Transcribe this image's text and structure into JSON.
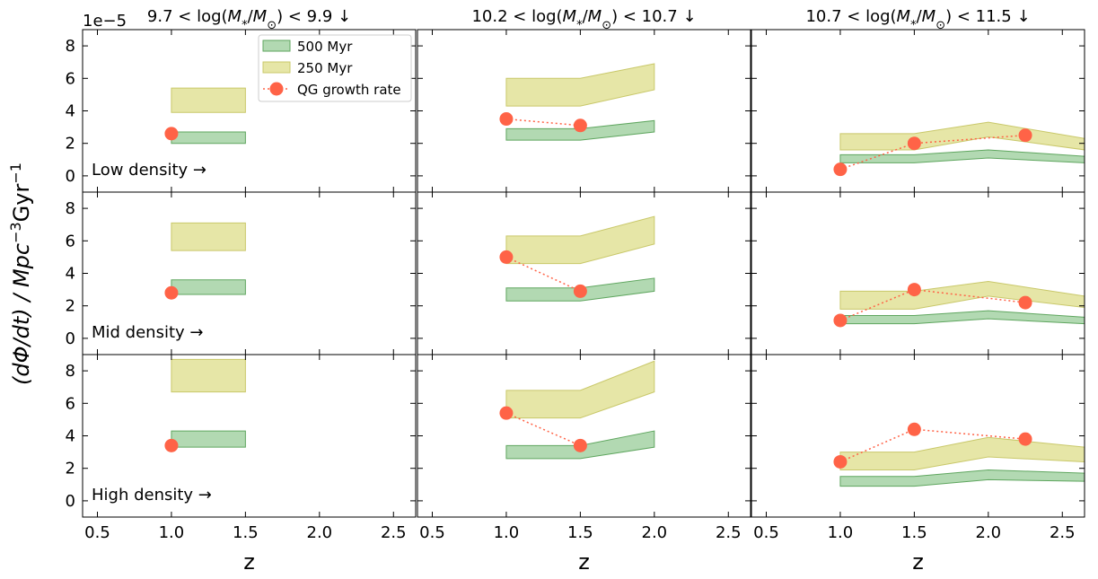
{
  "chart_data": {
    "type": "line",
    "scale_note": "1e−5",
    "ylabel_text": "(dΦ/dt) / Mpc",
    "ylabel_sup1": "−3",
    "ylabel_mid": "Gyr",
    "ylabel_sup2": "−1",
    "xlabel": "z",
    "xlim": [
      0.4,
      2.65
    ],
    "ylim": [
      -1,
      9
    ],
    "x_ticks": [
      0.5,
      1.0,
      1.5,
      2.0,
      2.5
    ],
    "x_tick_labels": [
      "0.5",
      "1.0",
      "1.5",
      "2.0",
      "2.5"
    ],
    "y_ticks": [
      0,
      2,
      4,
      6,
      8
    ],
    "y_tick_labels": [
      "0",
      "2",
      "4",
      "6",
      "8"
    ],
    "columns": [
      {
        "prefix": "9.7 < log(",
        "suffix": ") < 9.9",
        "arrow": "↓"
      },
      {
        "prefix": "10.2 < log(",
        "suffix": ") < 10.7",
        "arrow": "↓"
      },
      {
        "prefix": "10.7 < log(",
        "suffix": ") < 11.5",
        "arrow": "↓"
      }
    ],
    "mass_symbol": {
      "M": "M",
      "star_sub": "*",
      "sun_sub": "⊙"
    },
    "rows": [
      "Low density →",
      "Mid density →",
      "High density →"
    ],
    "legend": {
      "placement": "top-right of first panel",
      "entries": [
        {
          "label": "500 Myr",
          "color": "#7fbf7f"
        },
        {
          "label": "250 Myr",
          "color": "#dedd8a"
        },
        {
          "label": "QG growth rate",
          "color": "#ff6347"
        }
      ]
    },
    "colors": {
      "band_500": "#7fbf7f",
      "band_500_edge": "#5fa65f",
      "band_250": "#dedd8a",
      "band_250_edge": "#c9c86a",
      "growth": "#ff6347"
    },
    "panels": [
      [
        {
          "band_500": {
            "x": [
              1.0,
              1.5
            ],
            "lo": [
              2.0,
              2.0
            ],
            "hi": [
              2.7,
              2.7
            ]
          },
          "band_250": {
            "x": [
              1.0,
              1.5
            ],
            "lo": [
              3.9,
              3.9
            ],
            "hi": [
              5.4,
              5.4
            ]
          },
          "growth": {
            "x": [
              1.0
            ],
            "y": [
              2.6
            ],
            "err": [
              0.1
            ]
          }
        },
        {
          "band_500": {
            "x": [
              1.0,
              1.5,
              2.0
            ],
            "lo": [
              2.2,
              2.2,
              2.7
            ],
            "hi": [
              2.9,
              2.9,
              3.4
            ]
          },
          "band_250": {
            "x": [
              1.0,
              1.5,
              2.0
            ],
            "lo": [
              4.3,
              4.3,
              5.3
            ],
            "hi": [
              6.0,
              6.0,
              6.9
            ]
          },
          "growth": {
            "x": [
              1.0,
              1.5
            ],
            "y": [
              3.5,
              3.1
            ],
            "err": [
              0.2,
              0.15
            ]
          }
        },
        {
          "band_500": {
            "x": [
              1.0,
              1.5,
              2.0,
              2.65
            ],
            "lo": [
              0.8,
              0.8,
              1.1,
              0.8
            ],
            "hi": [
              1.3,
              1.3,
              1.6,
              1.2
            ]
          },
          "band_250": {
            "x": [
              1.0,
              1.5,
              2.0,
              2.65
            ],
            "lo": [
              1.6,
              1.6,
              2.4,
              1.6
            ],
            "hi": [
              2.6,
              2.6,
              3.3,
              2.3
            ]
          },
          "growth": {
            "x": [
              1.0,
              1.5,
              2.25
            ],
            "y": [
              0.4,
              2.0,
              2.5
            ],
            "err": [
              0.1,
              0.15,
              0.15
            ]
          }
        }
      ],
      [
        {
          "band_500": {
            "x": [
              1.0,
              1.5
            ],
            "lo": [
              2.7,
              2.7
            ],
            "hi": [
              3.6,
              3.6
            ]
          },
          "band_250": {
            "x": [
              1.0,
              1.5
            ],
            "lo": [
              5.4,
              5.4
            ],
            "hi": [
              7.1,
              7.1
            ]
          },
          "growth": {
            "x": [
              1.0
            ],
            "y": [
              2.8
            ],
            "err": [
              0.1
            ]
          }
        },
        {
          "band_500": {
            "x": [
              1.0,
              1.5,
              2.0
            ],
            "lo": [
              2.3,
              2.3,
              2.9
            ],
            "hi": [
              3.1,
              3.1,
              3.7
            ]
          },
          "band_250": {
            "x": [
              1.0,
              1.5,
              2.0
            ],
            "lo": [
              4.6,
              4.6,
              5.8
            ],
            "hi": [
              6.3,
              6.3,
              7.5
            ]
          },
          "growth": {
            "x": [
              1.0,
              1.5
            ],
            "y": [
              5.0,
              2.9
            ],
            "err": [
              0.25,
              0.15
            ]
          }
        },
        {
          "band_500": {
            "x": [
              1.0,
              1.5,
              2.0,
              2.65
            ],
            "lo": [
              0.9,
              0.9,
              1.2,
              0.9
            ],
            "hi": [
              1.4,
              1.4,
              1.7,
              1.3
            ]
          },
          "band_250": {
            "x": [
              1.0,
              1.5,
              2.0,
              2.65
            ],
            "lo": [
              1.8,
              1.8,
              2.6,
              1.9
            ],
            "hi": [
              2.9,
              2.9,
              3.5,
              2.6
            ]
          },
          "growth": {
            "x": [
              1.0,
              1.5,
              2.25
            ],
            "y": [
              1.1,
              3.0,
              2.2
            ],
            "err": [
              0.1,
              0.2,
              0.15
            ]
          }
        }
      ],
      [
        {
          "band_500": {
            "x": [
              1.0,
              1.5
            ],
            "lo": [
              3.3,
              3.3
            ],
            "hi": [
              4.3,
              4.3
            ]
          },
          "band_250": {
            "x": [
              1.0,
              1.5
            ],
            "lo": [
              6.7,
              6.7
            ],
            "hi": [
              8.7,
              8.7
            ]
          },
          "growth": {
            "x": [
              1.0
            ],
            "y": [
              3.4
            ],
            "err": [
              0.1
            ]
          }
        },
        {
          "band_500": {
            "x": [
              1.0,
              1.5,
              2.0
            ],
            "lo": [
              2.6,
              2.6,
              3.3
            ],
            "hi": [
              3.4,
              3.4,
              4.3
            ]
          },
          "band_250": {
            "x": [
              1.0,
              1.5,
              2.0
            ],
            "lo": [
              5.1,
              5.1,
              6.7
            ],
            "hi": [
              6.8,
              6.8,
              8.6
            ]
          },
          "growth": {
            "x": [
              1.0,
              1.5
            ],
            "y": [
              5.4,
              3.4
            ],
            "err": [
              0.25,
              0.2
            ]
          }
        },
        {
          "band_500": {
            "x": [
              1.0,
              1.5,
              2.0,
              2.65
            ],
            "lo": [
              0.9,
              0.9,
              1.3,
              1.2
            ],
            "hi": [
              1.5,
              1.5,
              1.9,
              1.7
            ]
          },
          "band_250": {
            "x": [
              1.0,
              1.5,
              2.0,
              2.65
            ],
            "lo": [
              1.9,
              1.9,
              2.7,
              2.4
            ],
            "hi": [
              3.0,
              3.0,
              3.9,
              3.3
            ]
          },
          "growth": {
            "x": [
              1.0,
              1.5,
              2.25
            ],
            "y": [
              2.4,
              4.4,
              3.8
            ],
            "err": [
              0.15,
              0.25,
              0.15
            ]
          }
        }
      ]
    ]
  }
}
